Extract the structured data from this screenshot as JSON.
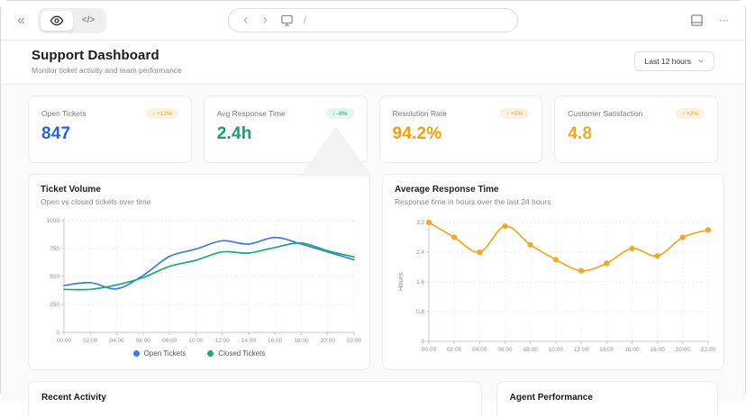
{
  "topbar": {
    "collapse_icon": "«",
    "view_toggle": {
      "preview_icon": "eye-icon",
      "code_label": "</>"
    },
    "address_bar": {
      "back_icon": "chevron-left",
      "forward_icon": "chevron-right",
      "device_icon": "monitor-icon",
      "path": "/"
    },
    "layout_icon": "bottom-panel-icon",
    "more_label": "⋯"
  },
  "header": {
    "title": "Support Dashboard",
    "subtitle": "Monitor ticket activity and team performance",
    "time_range": {
      "selected": "Last 12 hours",
      "chevron": "⌄"
    }
  },
  "metrics": [
    {
      "label": "Open Tickets",
      "value": "847",
      "trend": "↑ +12%",
      "value_color": "#2563eb",
      "badge_style": "orange"
    },
    {
      "label": "Avg Response Time",
      "value": "2.4h",
      "trend": "↓ -8%",
      "value_color": "#0fa36f",
      "badge_style": "green"
    },
    {
      "label": "Resolution Rate",
      "value": "94.2%",
      "trend": "↑ +5%",
      "value_color": "#f59e0b",
      "badge_style": "orange"
    },
    {
      "label": "Customer Satisfaction",
      "value": "4.8",
      "trend": "↑ +2%",
      "value_color": "#f5a623",
      "badge_style": "orange"
    }
  ],
  "chart_data": [
    {
      "type": "line",
      "title": "Ticket Volume",
      "subtitle": "Open vs closed tickets over time",
      "x": [
        "00:00",
        "02:00",
        "04:00",
        "06:00",
        "08:00",
        "10:00",
        "12:00",
        "14:00",
        "16:00",
        "18:00",
        "20:00",
        "22:00"
      ],
      "series": [
        {
          "name": "Open Tickets",
          "color": "#3f7be8",
          "values": [
            420,
            445,
            390,
            510,
            680,
            745,
            820,
            790,
            850,
            790,
            720,
            650
          ]
        },
        {
          "name": "Closed Tickets",
          "color": "#1aaa7a",
          "values": [
            385,
            385,
            425,
            490,
            590,
            645,
            720,
            710,
            760,
            800,
            730,
            675
          ]
        }
      ],
      "ylim": [
        0,
        1000
      ],
      "yticks": [
        0,
        250,
        500,
        750,
        1000
      ],
      "xlabel": "",
      "ylabel": "",
      "grid": true,
      "markers": false,
      "legend_position": "bottom"
    },
    {
      "type": "line",
      "title": "Average Response Time",
      "subtitle": "Response time in hours over the last 24 hours",
      "x": [
        "00:00",
        "02:00",
        "04:00",
        "06:00",
        "08:00",
        "10:00",
        "12:00",
        "14:00",
        "16:00",
        "18:00",
        "20:00",
        "22:00"
      ],
      "series": [
        {
          "name": "Response Time",
          "color": "#f5a623",
          "values": [
            3.2,
            2.8,
            2.4,
            3.1,
            2.6,
            2.2,
            1.9,
            2.1,
            2.5,
            2.3,
            2.8,
            3.0
          ]
        }
      ],
      "ylim": [
        0,
        3.2
      ],
      "yticks": [
        0,
        0.8,
        1.6,
        2.4,
        3.2
      ],
      "xlabel": "",
      "ylabel": "Hours",
      "grid": true,
      "markers": true,
      "legend_position": "none"
    }
  ],
  "bottom_sections": [
    {
      "title": "Recent Activity"
    },
    {
      "title": "Agent Performance"
    }
  ],
  "colors": {
    "accent_blue": "#2563eb",
    "accent_green": "#0fa36f",
    "accent_orange": "#f59e0b",
    "line_blue": "#3f7be8",
    "line_green": "#1aaa7a",
    "line_orange": "#f5a623",
    "badge_orange_bg": "#fdf2e0",
    "badge_green_bg": "#e3f5ec",
    "page_bg": "#fafafa",
    "card_border": "#ebebeb"
  }
}
